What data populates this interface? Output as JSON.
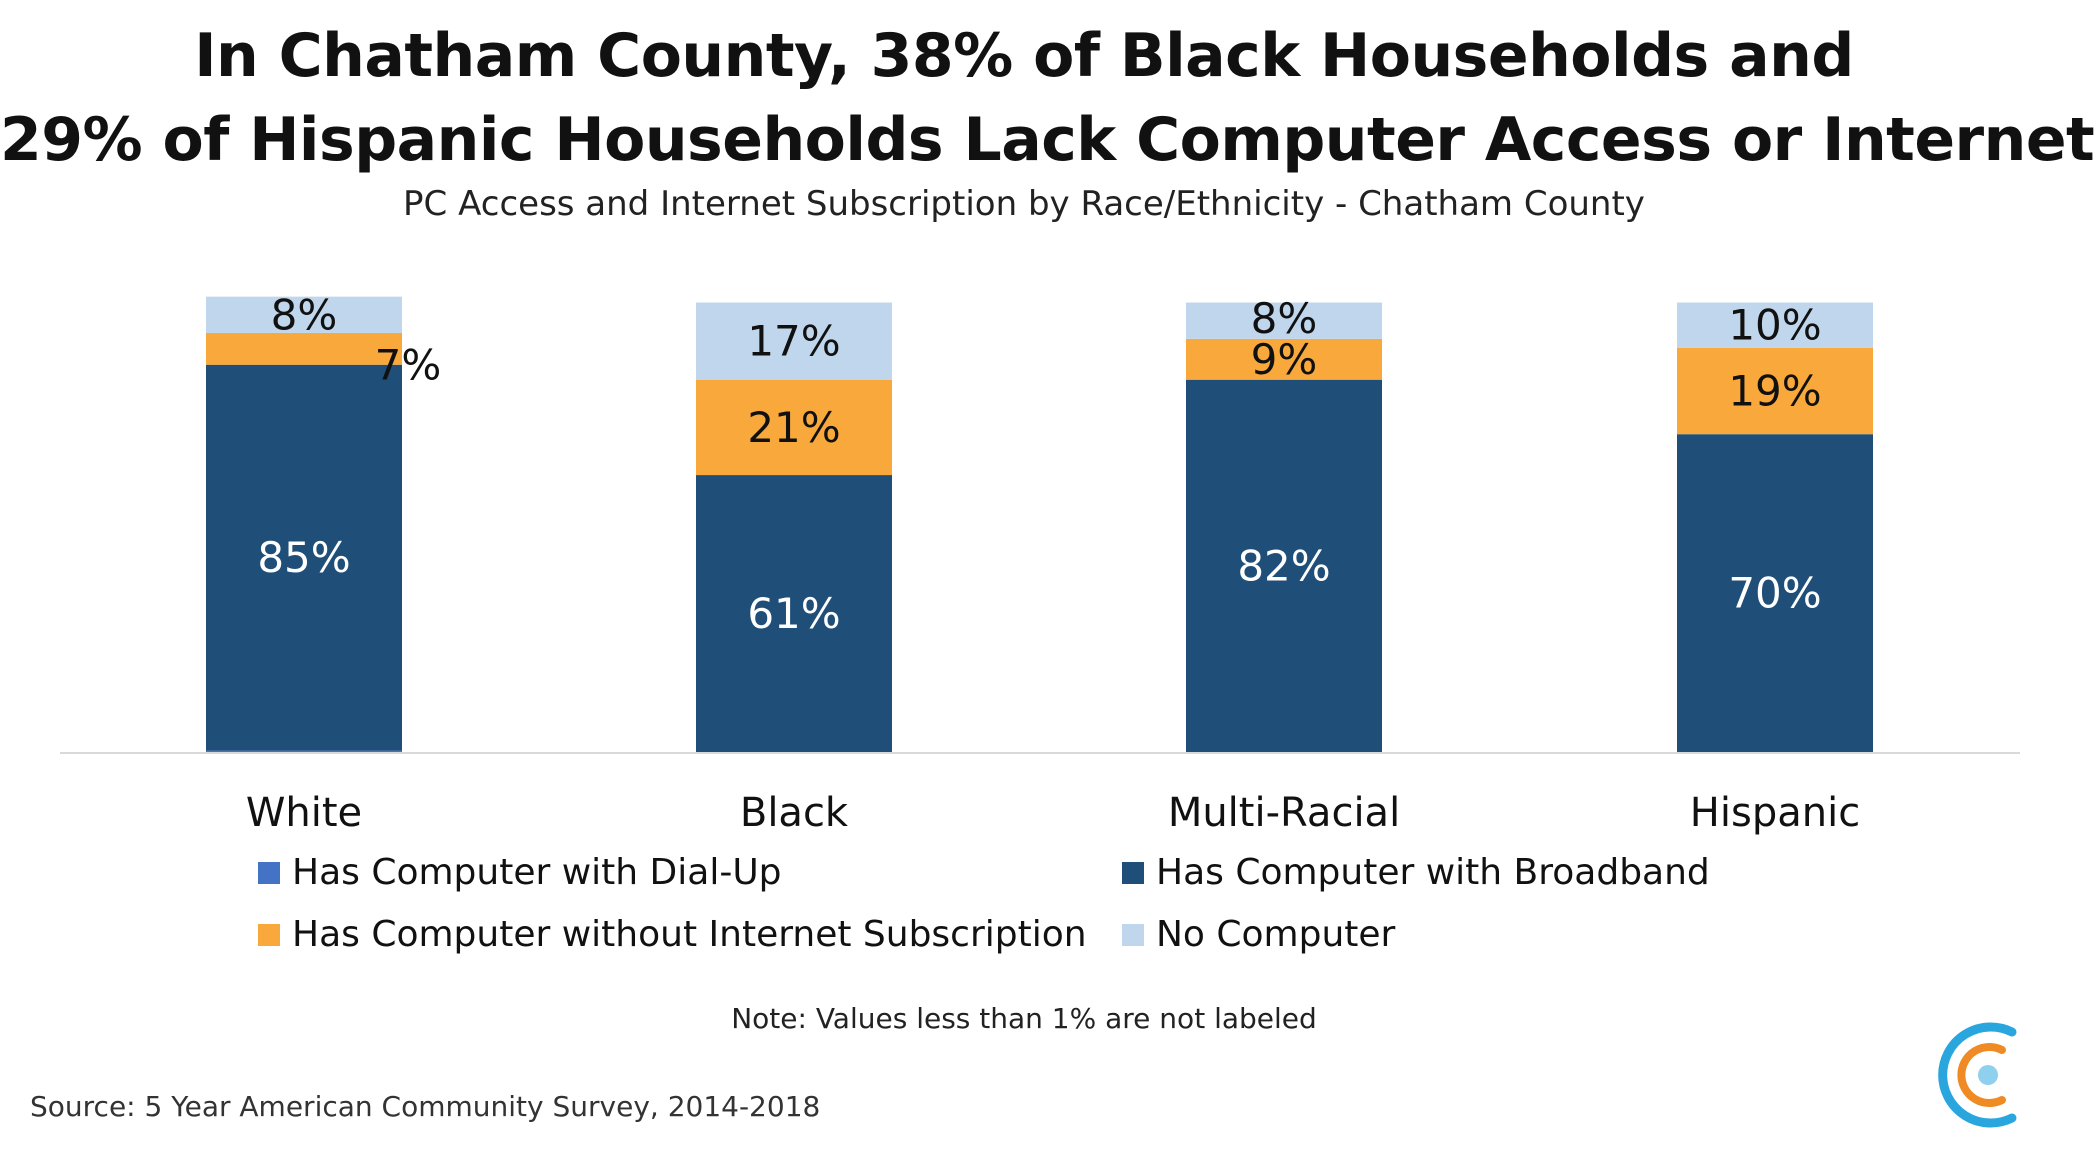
{
  "title_line1": "In Chatham County, 38% of Black Households and",
  "title_line2": "29% of Hispanic Households Lack Computer Access or Internet",
  "subtitle": "PC Access and Internet Subscription by Race/Ethnicity - Chatham County",
  "note": "Note: Values less than 1% are not labeled",
  "source": "Source: 5 Year American Community Survey, 2014-2018",
  "colors": {
    "dialup": "#4472C4",
    "broadband": "#1F4E79",
    "no_internet": "#F9A93B",
    "no_computer": "#C0D6EC",
    "axis": "#D9D9D9",
    "logo_orange": "#F08A24",
    "logo_blue": "#2AA6DE"
  },
  "chart_data": {
    "type": "bar",
    "stacked": true,
    "orientation": "vertical",
    "categories": [
      "White",
      "Black",
      "Multi-Racial",
      "Hispanic"
    ],
    "series": [
      {
        "name": "Has Computer with Dial-Up",
        "color": "#4472C4",
        "values": [
          0.3,
          0,
          0,
          0
        ]
      },
      {
        "name": "Has Computer with Broadband",
        "color": "#1F4E79",
        "values": [
          85,
          61,
          82,
          70
        ]
      },
      {
        "name": "Has Computer without Internet Subscription",
        "color": "#F9A93B",
        "values": [
          7,
          21,
          9,
          19
        ]
      },
      {
        "name": "No Computer",
        "color": "#C0D6EC",
        "values": [
          8,
          17,
          8,
          10
        ]
      }
    ],
    "data_labels": [
      [
        "",
        "85%",
        "7%",
        "8%"
      ],
      [
        "",
        "61%",
        "21%",
        "17%"
      ],
      [
        "",
        "82%",
        "9%",
        "8%"
      ],
      [
        "",
        "70%",
        "19%",
        "10%"
      ]
    ],
    "ylim": [
      0,
      100
    ],
    "grid": false,
    "legend_position": "bottom"
  }
}
